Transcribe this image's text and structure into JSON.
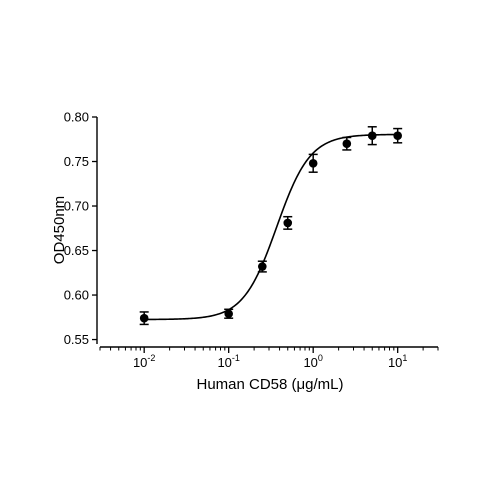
{
  "chart_data": {
    "type": "scatter",
    "xlabel": "Human CD58 (μg/mL)",
    "ylabel": "OD450nm",
    "xscale": "log",
    "xlim": [
      0.003,
      30
    ],
    "ylim": [
      0.545,
      0.8
    ],
    "x_ticks": [
      {
        "value": 0.01,
        "base": "10",
        "exp": "-2"
      },
      {
        "value": 0.1,
        "base": "10",
        "exp": "-1"
      },
      {
        "value": 1,
        "base": "10",
        "exp": "0"
      },
      {
        "value": 10,
        "base": "10",
        "exp": "1"
      }
    ],
    "y_ticks": [
      {
        "value": 0.55,
        "label": "0.55"
      },
      {
        "value": 0.6,
        "label": "0.60"
      },
      {
        "value": 0.65,
        "label": "0.65"
      },
      {
        "value": 0.7,
        "label": "0.70"
      },
      {
        "value": 0.75,
        "label": "0.75"
      },
      {
        "value": 0.8,
        "label": "0.80"
      }
    ],
    "grid": false,
    "legend": "none",
    "series": [
      {
        "x": [
          0.01,
          0.1,
          0.25,
          0.5,
          1,
          2.5,
          5,
          10
        ],
        "y": [
          0.574,
          0.579,
          0.632,
          0.681,
          0.748,
          0.77,
          0.779,
          0.779
        ],
        "y_err": [
          0.007,
          0.005,
          0.006,
          0.007,
          0.01,
          0.007,
          0.01,
          0.008
        ]
      }
    ],
    "fit": {
      "model": "4PL",
      "bottom": 0.5725,
      "top": 0.7805,
      "ec50": 0.37,
      "hill": 2.2
    }
  }
}
